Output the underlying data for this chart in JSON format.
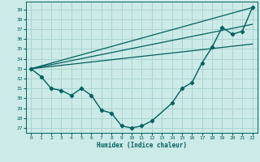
{
  "xlabel": "Humidex (Indice chaleur)",
  "bg_color": "#cceae7",
  "grid_color": "#aad4d0",
  "line_color": "#006060",
  "xlim": [
    -0.5,
    22.5
  ],
  "ylim": [
    26.5,
    39.8
  ],
  "xticks": [
    0,
    1,
    2,
    3,
    4,
    5,
    6,
    7,
    8,
    9,
    10,
    11,
    12,
    13,
    14,
    15,
    16,
    17,
    18,
    19,
    20,
    21,
    22
  ],
  "yticks": [
    27,
    28,
    29,
    30,
    31,
    32,
    33,
    34,
    35,
    36,
    37,
    38,
    39
  ],
  "main_series_x": [
    0,
    1,
    2,
    3,
    4,
    5,
    6,
    7,
    8,
    9,
    10,
    11,
    12,
    14,
    15,
    16,
    17,
    18,
    19,
    20,
    21,
    22
  ],
  "main_series_y": [
    33.0,
    32.2,
    31.0,
    30.8,
    30.3,
    31.0,
    30.3,
    28.8,
    28.5,
    27.2,
    27.0,
    27.2,
    27.7,
    29.5,
    31.0,
    31.6,
    33.6,
    35.2,
    37.2,
    36.5,
    36.8,
    39.2
  ],
  "straight_lines": [
    {
      "x": [
        0,
        22
      ],
      "y": [
        33.0,
        39.2
      ]
    },
    {
      "x": [
        0,
        22
      ],
      "y": [
        33.0,
        37.5
      ]
    },
    {
      "x": [
        0,
        22
      ],
      "y": [
        33.0,
        35.5
      ]
    }
  ]
}
